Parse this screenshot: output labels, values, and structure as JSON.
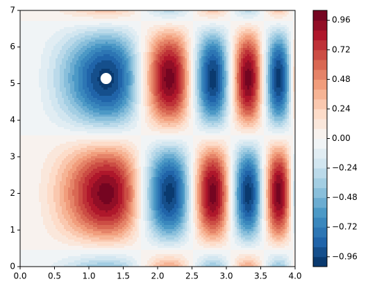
{
  "chart_data": {
    "type": "contour",
    "field": "Math.sin(x*x)*Math.cos(y-2)",
    "xlim": [
      0,
      4
    ],
    "ylim": [
      0,
      7
    ],
    "xticks": [
      {
        "value": 0,
        "label": "0.0"
      },
      {
        "value": 0.5,
        "label": "0.5"
      },
      {
        "value": 1,
        "label": "1.0"
      },
      {
        "value": 1.5,
        "label": "1.5"
      },
      {
        "value": 2,
        "label": "2.0"
      },
      {
        "value": 2.5,
        "label": "2.5"
      },
      {
        "value": 3,
        "label": "3.0"
      },
      {
        "value": 3.5,
        "label": "3.5"
      },
      {
        "value": 4,
        "label": "4.0"
      }
    ],
    "yticks": [
      0,
      1,
      2,
      3,
      4,
      5,
      6,
      7
    ],
    "levels": [
      -1.04,
      -0.96,
      -0.88,
      -0.8,
      -0.72,
      -0.64,
      -0.56,
      -0.48,
      -0.4,
      -0.32,
      -0.24,
      -0.16,
      -0.08,
      0,
      0.08,
      0.16,
      0.24,
      0.32,
      0.4,
      0.48,
      0.56,
      0.64,
      0.72,
      0.8,
      0.88,
      0.96,
      1.04
    ],
    "colormap": [
      "#67001f",
      "#b2182b",
      "#d6604d",
      "#f4a582",
      "#fddbc7",
      "#f7f7f7",
      "#d1e5f0",
      "#92c5de",
      "#4393c3",
      "#2166ac",
      "#053061"
    ],
    "colorbar_ticks": [
      {
        "value": -0.96,
        "label": "−0.96"
      },
      {
        "value": -0.72,
        "label": "−0.72"
      },
      {
        "value": -0.48,
        "label": "−0.48"
      },
      {
        "value": -0.24,
        "label": "−0.24"
      },
      {
        "value": 0,
        "label": "0.00"
      },
      {
        "value": 0.24,
        "label": "0.24"
      },
      {
        "value": 0.48,
        "label": "0.48"
      },
      {
        "value": 0.72,
        "label": "0.72"
      },
      {
        "value": 0.96,
        "label": "0.96"
      }
    ],
    "marker": {
      "x": 1.25,
      "y": 5.14,
      "color": "#ffffff"
    }
  }
}
